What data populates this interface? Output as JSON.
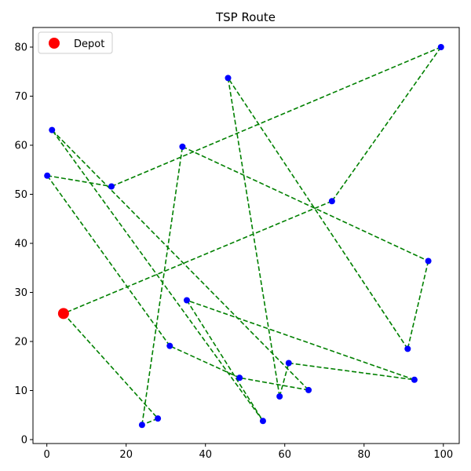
{
  "chart_data": {
    "type": "scatter",
    "title": "TSP Route",
    "xlabel": "",
    "ylabel": "",
    "xlim": [
      -3.5,
      104
    ],
    "ylim": [
      -0.8,
      84
    ],
    "xticks": [
      0,
      20,
      40,
      60,
      80,
      100
    ],
    "yticks": [
      0,
      10,
      20,
      30,
      40,
      50,
      60,
      70,
      80
    ],
    "grid": false,
    "legend": {
      "position": "top-left",
      "entries": [
        {
          "label": "Depot",
          "color": "#ff0000",
          "marker": "circle"
        }
      ]
    },
    "depot": {
      "x": 4.2,
      "y": 25.7
    },
    "route": [
      {
        "x": 4.2,
        "y": 25.7
      },
      {
        "x": 28.0,
        "y": 4.3
      },
      {
        "x": 24.0,
        "y": 3.0
      },
      {
        "x": 34.2,
        "y": 59.7
      },
      {
        "x": 96.2,
        "y": 36.4
      },
      {
        "x": 91.0,
        "y": 18.5
      },
      {
        "x": 45.7,
        "y": 73.7
      },
      {
        "x": 58.7,
        "y": 8.8
      },
      {
        "x": 61.0,
        "y": 15.6
      },
      {
        "x": 92.7,
        "y": 12.2
      },
      {
        "x": 35.3,
        "y": 28.4
      },
      {
        "x": 54.5,
        "y": 3.8
      },
      {
        "x": 1.3,
        "y": 63.1
      },
      {
        "x": 66.0,
        "y": 10.1
      },
      {
        "x": 48.6,
        "y": 12.6
      },
      {
        "x": 31.0,
        "y": 19.1
      },
      {
        "x": 0.1,
        "y": 53.8
      },
      {
        "x": 16.3,
        "y": 51.6
      },
      {
        "x": 99.4,
        "y": 80.0
      },
      {
        "x": 71.9,
        "y": 48.6
      },
      {
        "x": 4.2,
        "y": 25.7
      }
    ],
    "colors": {
      "point": "#0000ff",
      "depot": "#ff0000",
      "route": "#008000",
      "axes": "#000000"
    }
  }
}
